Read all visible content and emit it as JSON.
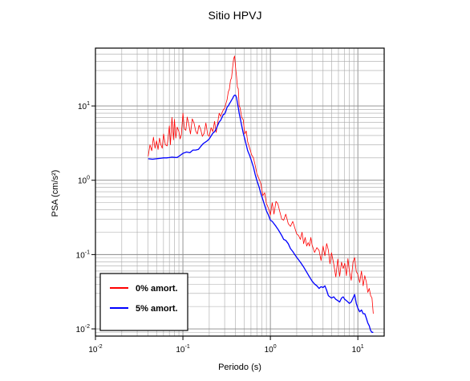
{
  "chart_data": {
    "type": "line",
    "title": "Sitio HPVJ",
    "xlabel": "Periodo (s)",
    "ylabel": "PSA (cm/s²)",
    "xscale": "log",
    "yscale": "log",
    "xlim": [
      0.01,
      20
    ],
    "ylim": [
      0.008,
      60
    ],
    "grid": true,
    "legend_position": "bottom-left",
    "xticks": [
      {
        "value": 0.01,
        "base": "10",
        "exp": "-2"
      },
      {
        "value": 0.1,
        "base": "10",
        "exp": "-1"
      },
      {
        "value": 1,
        "base": "10",
        "exp": "0"
      },
      {
        "value": 10,
        "base": "10",
        "exp": "1"
      }
    ],
    "yticks": [
      {
        "value": 0.01,
        "base": "10",
        "exp": "-2"
      },
      {
        "value": 0.1,
        "base": "10",
        "exp": "-1"
      },
      {
        "value": 1,
        "base": "10",
        "exp": "0"
      },
      {
        "value": 10,
        "base": "10",
        "exp": "1"
      }
    ],
    "series": [
      {
        "name": "0% amort.",
        "color": "#ff0000",
        "x": [
          0.04,
          0.042,
          0.044,
          0.046,
          0.048,
          0.05,
          0.052,
          0.054,
          0.056,
          0.058,
          0.06,
          0.063,
          0.066,
          0.07,
          0.072,
          0.075,
          0.078,
          0.08,
          0.083,
          0.086,
          0.09,
          0.093,
          0.096,
          0.1,
          0.104,
          0.108,
          0.112,
          0.117,
          0.122,
          0.128,
          0.134,
          0.14,
          0.146,
          0.153,
          0.16,
          0.167,
          0.175,
          0.183,
          0.192,
          0.2,
          0.21,
          0.22,
          0.23,
          0.24,
          0.25,
          0.26,
          0.27,
          0.28,
          0.29,
          0.3,
          0.31,
          0.32,
          0.33,
          0.34,
          0.35,
          0.36,
          0.37,
          0.38,
          0.39,
          0.4,
          0.41,
          0.42,
          0.43,
          0.44,
          0.45,
          0.47,
          0.49,
          0.51,
          0.53,
          0.55,
          0.58,
          0.61,
          0.64,
          0.67,
          0.7,
          0.74,
          0.78,
          0.82,
          0.86,
          0.9,
          0.95,
          1.0,
          1.05,
          1.1,
          1.16,
          1.22,
          1.28,
          1.35,
          1.42,
          1.5,
          1.6,
          1.7,
          1.8,
          1.9,
          2.0,
          2.1,
          2.2,
          2.3,
          2.4,
          2.5,
          2.6,
          2.7,
          2.8,
          2.9,
          3.0,
          3.2,
          3.4,
          3.6,
          3.8,
          4.0,
          4.2,
          4.4,
          4.6,
          4.8,
          5.0,
          5.3,
          5.6,
          5.9,
          6.2,
          6.5,
          6.8,
          7.1,
          7.4,
          7.7,
          8.0,
          8.4,
          8.8,
          9.2,
          9.6,
          10.0,
          10.5,
          11.0,
          11.5,
          12.0,
          12.5,
          13.0,
          13.5,
          14.0,
          14.5,
          15.0
        ],
        "y": [
          2.1,
          3.0,
          2.5,
          3.8,
          2.7,
          3.4,
          2.6,
          3.7,
          3.0,
          2.7,
          4.2,
          3.0,
          2.9,
          5.4,
          3.0,
          7.0,
          3.5,
          6.6,
          3.7,
          5.2,
          4.5,
          3.6,
          4.1,
          8.0,
          4.9,
          4.7,
          7.1,
          5.6,
          4.2,
          6.7,
          5.9,
          4.6,
          4.2,
          5.5,
          4.8,
          3.9,
          4.3,
          5.9,
          4.1,
          3.9,
          5.1,
          4.5,
          6.2,
          4.4,
          6.0,
          8.0,
          7.2,
          8.1,
          8.9,
          9.3,
          10.7,
          12.1,
          15.4,
          16.8,
          22.2,
          23.8,
          32.6,
          43.0,
          47.0,
          33.0,
          25.0,
          18.0,
          17.0,
          10.0,
          9.5,
          7.0,
          6.5,
          4.2,
          4.6,
          3.3,
          2.7,
          2.2,
          2.0,
          1.6,
          1.24,
          1.05,
          0.9,
          0.62,
          0.68,
          0.49,
          0.42,
          0.34,
          0.5,
          0.35,
          0.52,
          0.48,
          0.38,
          0.3,
          0.29,
          0.35,
          0.26,
          0.24,
          0.28,
          0.23,
          0.19,
          0.18,
          0.16,
          0.2,
          0.14,
          0.17,
          0.13,
          0.145,
          0.13,
          0.17,
          0.135,
          0.107,
          0.124,
          0.114,
          0.083,
          0.13,
          0.096,
          0.141,
          0.115,
          0.075,
          0.106,
          0.075,
          0.05,
          0.087,
          0.051,
          0.079,
          0.065,
          0.076,
          0.052,
          0.088,
          0.06,
          0.045,
          0.079,
          0.091,
          0.059,
          0.054,
          0.042,
          0.06,
          0.038,
          0.052,
          0.043,
          0.031,
          0.035,
          0.028,
          0.026,
          0.016
        ]
      },
      {
        "name": "5% amort.",
        "color": "#0000ff",
        "x": [
          0.04,
          0.045,
          0.05,
          0.055,
          0.06,
          0.065,
          0.07,
          0.075,
          0.08,
          0.085,
          0.09,
          0.095,
          0.1,
          0.11,
          0.12,
          0.13,
          0.14,
          0.15,
          0.16,
          0.17,
          0.18,
          0.19,
          0.2,
          0.21,
          0.22,
          0.23,
          0.24,
          0.25,
          0.26,
          0.27,
          0.28,
          0.29,
          0.3,
          0.31,
          0.32,
          0.33,
          0.34,
          0.35,
          0.36,
          0.37,
          0.38,
          0.39,
          0.4,
          0.41,
          0.42,
          0.43,
          0.44,
          0.45,
          0.47,
          0.49,
          0.51,
          0.53,
          0.55,
          0.58,
          0.61,
          0.64,
          0.67,
          0.7,
          0.74,
          0.78,
          0.82,
          0.86,
          0.9,
          0.95,
          1.0,
          1.05,
          1.1,
          1.16,
          1.22,
          1.28,
          1.35,
          1.42,
          1.5,
          1.6,
          1.7,
          1.8,
          1.9,
          2.0,
          2.2,
          2.4,
          2.6,
          2.8,
          3.0,
          3.2,
          3.4,
          3.6,
          3.8,
          4.0,
          4.2,
          4.4,
          4.6,
          4.8,
          5.0,
          5.3,
          5.6,
          5.9,
          6.2,
          6.5,
          6.8,
          7.1,
          7.4,
          7.7,
          8.0,
          8.4,
          8.8,
          9.2,
          9.6,
          10.0,
          10.5,
          11.0,
          11.5,
          12.0,
          12.5,
          13.0,
          13.5,
          14.0,
          14.5,
          15.0
        ],
        "y": [
          1.95,
          1.92,
          1.95,
          1.98,
          2.0,
          2.0,
          2.02,
          2.05,
          2.03,
          2.02,
          2.1,
          2.2,
          2.3,
          2.4,
          2.35,
          2.55,
          2.55,
          2.6,
          2.85,
          3.1,
          3.25,
          3.4,
          3.6,
          3.95,
          4.3,
          4.5,
          4.9,
          5.5,
          6.1,
          6.4,
          7.0,
          7.7,
          7.8,
          8.5,
          9.6,
          10.0,
          10.7,
          11.3,
          12.0,
          12.6,
          13.5,
          14.0,
          13.9,
          13.0,
          11.0,
          9.5,
          8.0,
          7.0,
          5.4,
          4.3,
          3.6,
          3.0,
          2.5,
          2.15,
          1.8,
          1.5,
          1.2,
          1.0,
          0.82,
          0.66,
          0.55,
          0.46,
          0.39,
          0.34,
          0.29,
          0.28,
          0.26,
          0.24,
          0.22,
          0.2,
          0.18,
          0.16,
          0.155,
          0.14,
          0.12,
          0.11,
          0.1,
          0.092,
          0.079,
          0.068,
          0.058,
          0.05,
          0.044,
          0.04,
          0.038,
          0.035,
          0.037,
          0.036,
          0.038,
          0.033,
          0.028,
          0.027,
          0.026,
          0.027,
          0.025,
          0.024,
          0.023,
          0.026,
          0.027,
          0.025,
          0.024,
          0.023,
          0.022,
          0.023,
          0.026,
          0.029,
          0.022,
          0.019,
          0.017,
          0.018,
          0.016,
          0.016,
          0.014,
          0.012,
          0.011,
          0.0095,
          0.009,
          0.009
        ]
      }
    ]
  }
}
